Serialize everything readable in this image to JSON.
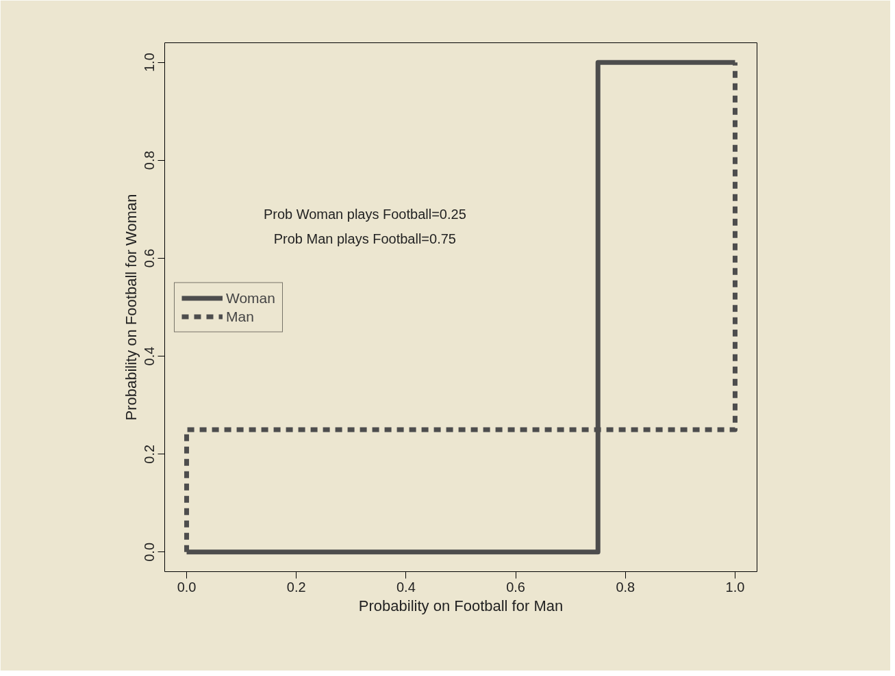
{
  "chart_data": {
    "type": "line",
    "xlabel": "Probability on Football for Man",
    "ylabel": "Probability on Football for Woman",
    "annotations": [
      "Prob Woman plays Football=0.25",
      "Prob Man plays Football=0.75"
    ],
    "series": [
      {
        "name": "Woman",
        "color": "#4d4d4d",
        "x": [
          0,
          0.75,
          0.75,
          1
        ],
        "values": [
          0,
          0,
          1,
          1
        ],
        "line_style": "solid"
      },
      {
        "name": "Man",
        "color": "#4d4d4d",
        "x": [
          0,
          0,
          1,
          1
        ],
        "values": [
          0,
          0.25,
          0.25,
          1
        ],
        "line_style": "dashed"
      }
    ],
    "xlim": [
      -0.04,
      1.04
    ],
    "ylim": [
      -0.04,
      1.04
    ],
    "xticks": [
      {
        "value": 0,
        "label": "0.0"
      },
      {
        "value": 0.2,
        "label": "0.2"
      },
      {
        "value": 0.4,
        "label": "0.4"
      },
      {
        "value": 0.6,
        "label": "0.6"
      },
      {
        "value": 0.8,
        "label": "0.8"
      },
      {
        "value": 1,
        "label": "1.0"
      }
    ],
    "yticks": [
      {
        "value": 0,
        "label": "0.0"
      },
      {
        "value": 0.2,
        "label": "0.2"
      },
      {
        "value": 0.4,
        "label": "0.4"
      },
      {
        "value": 0.6,
        "label": "0.6"
      },
      {
        "value": 0.8,
        "label": "0.8"
      },
      {
        "value": 1,
        "label": "1.0"
      }
    ],
    "grid": false,
    "legend": "left",
    "marker": "none"
  }
}
